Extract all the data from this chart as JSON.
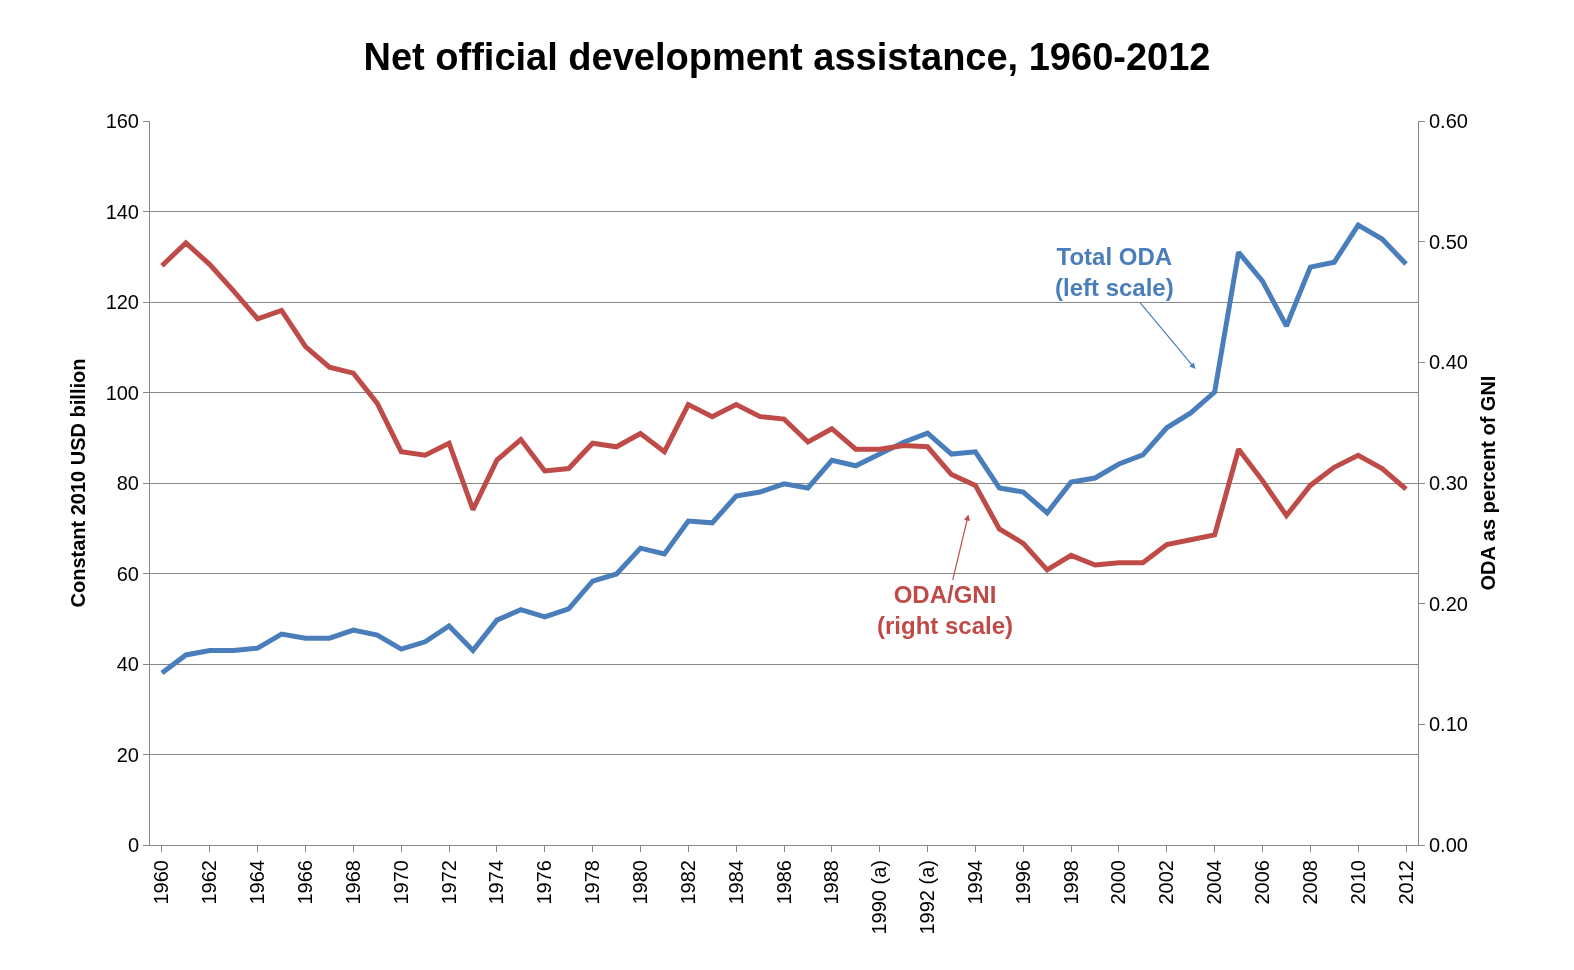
{
  "chart_data": {
    "type": "line",
    "title": "Net official development assistance, 1960-2012",
    "ylabel": "Constant 2010 USD billion",
    "y2label": "ODA as percent of GNI",
    "categories": [
      "1960",
      null,
      "1962",
      null,
      "1964",
      null,
      "1966",
      null,
      "1968",
      null,
      "1970",
      null,
      "1972",
      null,
      "1974",
      null,
      "1976",
      null,
      "1978",
      null,
      "1980",
      null,
      "1982",
      null,
      "1984",
      null,
      "1986",
      null,
      "1988",
      null,
      "1990 (a)",
      null,
      "1992 (a)",
      null,
      "1994",
      null,
      "1996",
      null,
      "1998",
      null,
      "2000",
      null,
      "2002",
      null,
      "2004",
      null,
      "2006",
      null,
      "2008",
      null,
      "2010",
      null,
      "2012"
    ],
    "series": [
      {
        "name": "Total ODA (left scale)",
        "color": "#4a7ebb",
        "values": [
          38,
          42,
          43,
          43,
          43.5,
          46.6,
          45.7,
          45.7,
          47.5,
          46.4,
          43.3,
          44.9,
          48.4,
          43,
          49.7,
          52,
          50.4,
          52.2,
          58.3,
          59.9,
          65.6,
          64.3,
          71.6,
          71.2,
          77.1,
          78,
          79.8,
          78.9,
          85,
          83.8,
          86.4,
          89,
          91,
          86.4,
          86.9,
          78.9,
          78,
          73.4,
          80.2,
          81.1,
          84.2,
          86.2,
          92.2,
          95.5,
          100.1,
          131,
          124.6,
          114.7,
          127.7,
          128.8,
          137,
          133.9,
          128.4
        ]
      },
      {
        "name": "ODA/GNI (right scale)",
        "color": "#be4b48",
        "axis": "y2",
        "values": [
          0.48,
          0.499,
          0.481,
          0.459,
          0.436,
          0.443,
          0.413,
          0.396,
          0.391,
          0.366,
          0.326,
          0.323,
          0.333,
          0.278,
          0.319,
          0.336,
          0.31,
          0.312,
          0.333,
          0.33,
          0.341,
          0.326,
          0.365,
          0.355,
          0.365,
          0.355,
          0.353,
          0.334,
          0.345,
          0.328,
          0.328,
          0.331,
          0.33,
          0.307,
          0.298,
          0.262,
          0.25,
          0.228,
          0.24,
          0.232,
          0.234,
          0.234,
          0.249,
          0.253,
          0.257,
          0.328,
          0.302,
          0.273,
          0.298,
          0.313,
          0.323,
          0.312,
          0.295
        ]
      }
    ],
    "ylim": [
      0,
      160
    ],
    "yticks": [
      0,
      20,
      40,
      60,
      80,
      100,
      120,
      140,
      160
    ],
    "y2lim": [
      0,
      0.6
    ],
    "y2ticks": [
      {
        "value": 0,
        "label": "0.00"
      },
      {
        "value": 0.1,
        "label": "0.10"
      },
      {
        "value": 0.2,
        "label": "0.20"
      },
      {
        "value": 0.3,
        "label": "0.30"
      },
      {
        "value": 0.4,
        "label": "0.40"
      },
      {
        "value": 0.5,
        "label": "0.50"
      },
      {
        "value": 0.6,
        "label": "0.60"
      }
    ],
    "grid": "y"
  }
}
